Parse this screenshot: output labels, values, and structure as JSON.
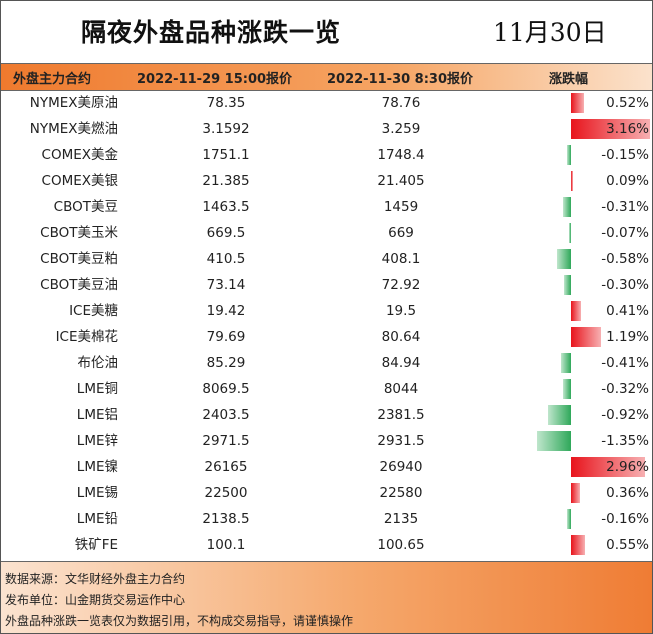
{
  "header": {
    "title": "隔夜外盘品种涨跌一览",
    "date": "11月30日"
  },
  "table": {
    "columns": [
      "外盘主力合约",
      "2022-11-29 15:00报价",
      "2022-11-30 8:30报价",
      "涨跌幅"
    ],
    "rows": [
      [
        "NYMEX美原油",
        "78.35",
        "78.76",
        "0.52%"
      ],
      [
        "NYMEX美燃油",
        "3.1592",
        "3.259",
        "3.16%"
      ],
      [
        "COMEX美金",
        "1751.1",
        "1748.4",
        "-0.15%"
      ],
      [
        "COMEX美银",
        "21.385",
        "21.405",
        "0.09%"
      ],
      [
        "CBOT美豆",
        "1463.5",
        "1459",
        "-0.31%"
      ],
      [
        "CBOT美玉米",
        "669.5",
        "669",
        "-0.07%"
      ],
      [
        "CBOT美豆粕",
        "410.5",
        "408.1",
        "-0.58%"
      ],
      [
        "CBOT美豆油",
        "73.14",
        "72.92",
        "-0.30%"
      ],
      [
        "ICE美糖",
        "19.42",
        "19.5",
        "0.41%"
      ],
      [
        "ICE美棉花",
        "79.69",
        "80.64",
        "1.19%"
      ],
      [
        "布伦油",
        "85.29",
        "84.94",
        "-0.41%"
      ],
      [
        "LME铜",
        "8069.5",
        "8044",
        "-0.32%"
      ],
      [
        "LME铝",
        "2403.5",
        "2381.5",
        "-0.92%"
      ],
      [
        "LME锌",
        "2971.5",
        "2931.5",
        "-1.35%"
      ],
      [
        "LME镍",
        "26165",
        "26940",
        "2.96%"
      ],
      [
        "LME锡",
        "22500",
        "22580",
        "0.36%"
      ],
      [
        "LME铅",
        "2138.5",
        "2135",
        "-0.16%"
      ],
      [
        "铁矿FE",
        "100.1",
        "100.65",
        "0.55%"
      ]
    ]
  },
  "footer": [
    "数据来源：文华财经外盘主力合约",
    "发布单位：山金期货交易运作中心",
    "外盘品种涨跌一览表仅为数据引用，不构成交易指导，请谨慎操作"
  ]
}
